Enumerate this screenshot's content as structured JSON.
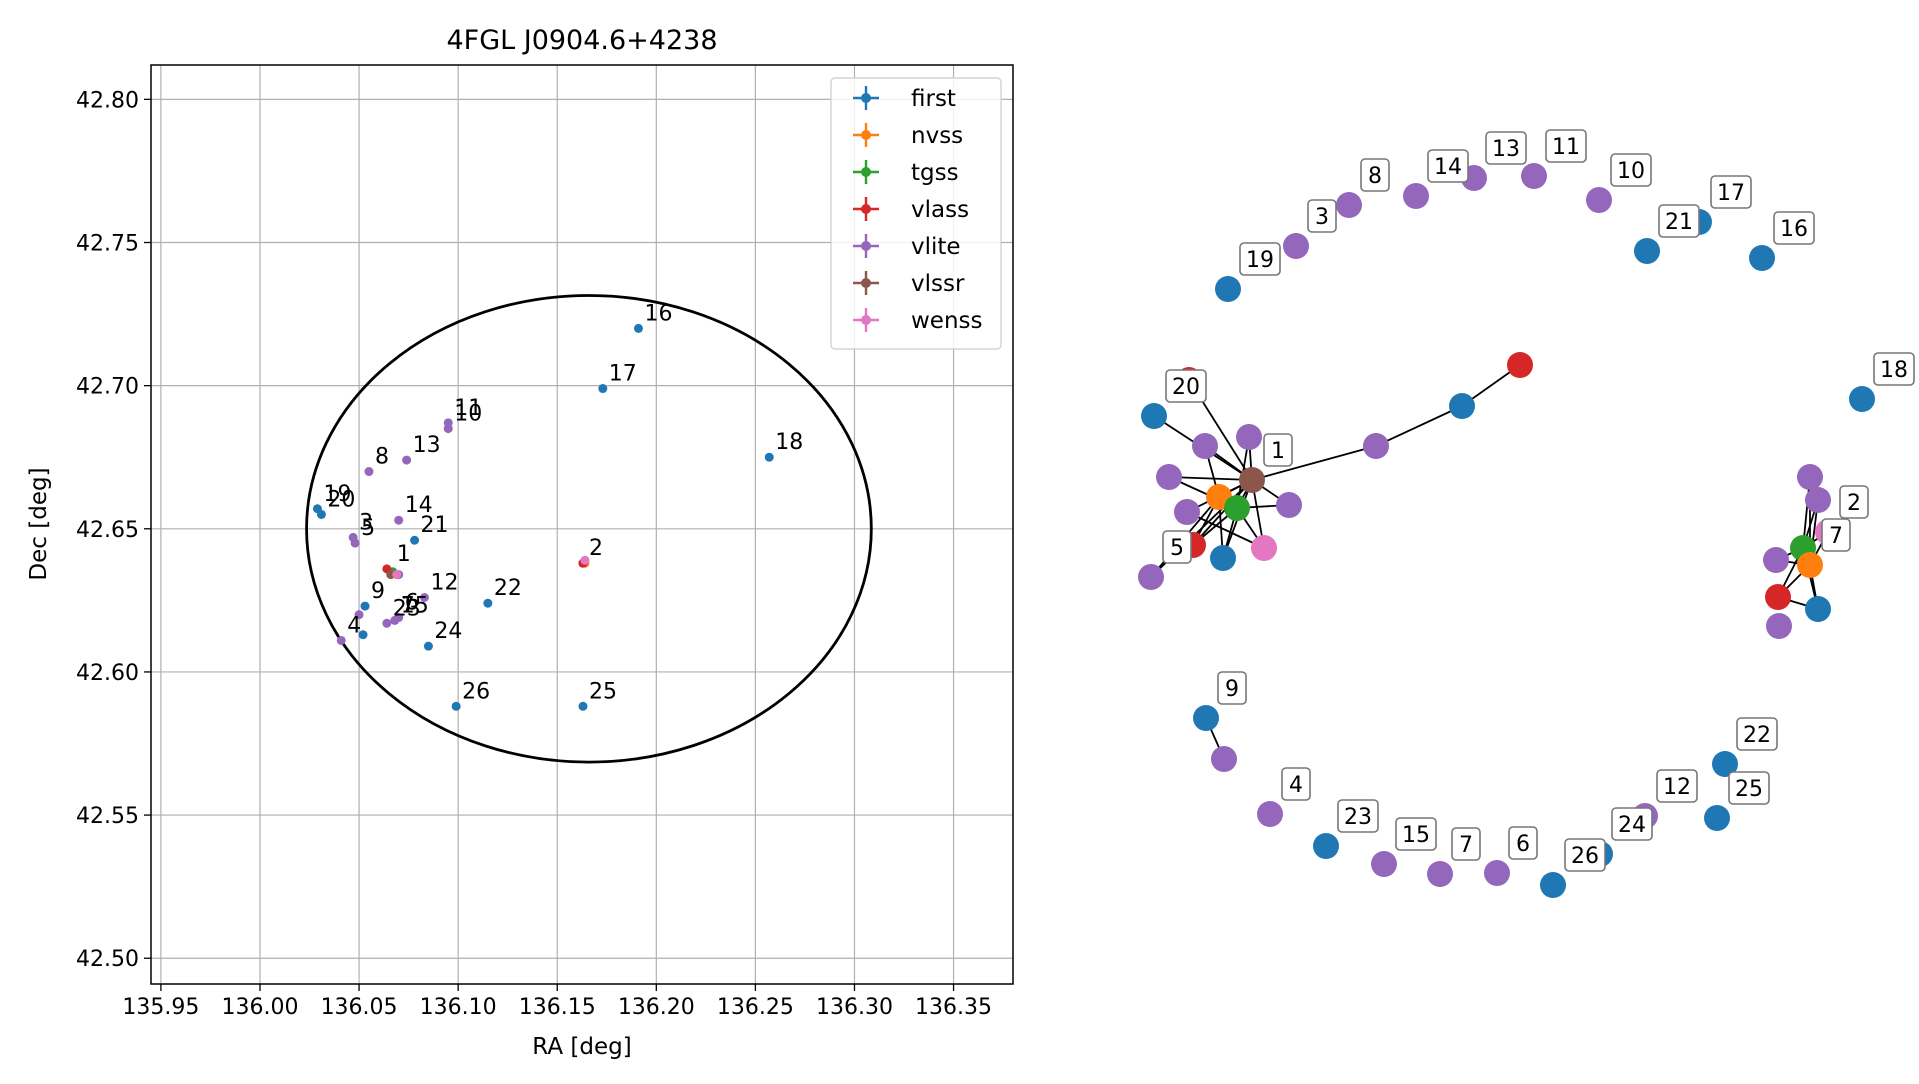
{
  "chart_data": [
    {
      "type": "scatter",
      "title": "4FGL J0904.6+4238",
      "xlabel": "RA [deg]",
      "ylabel": "Dec [deg]",
      "xlim": [
        135.945,
        136.38
      ],
      "ylim": [
        42.491,
        42.812
      ],
      "xticks": [
        "135.95",
        "136.00",
        "136.05",
        "136.10",
        "136.15",
        "136.20",
        "136.25",
        "136.30",
        "136.35"
      ],
      "xtick_values": [
        135.95,
        136.0,
        136.05,
        136.1,
        136.15,
        136.2,
        136.25,
        136.3,
        136.35
      ],
      "yticks": [
        "42.50",
        "42.55",
        "42.60",
        "42.65",
        "42.70",
        "42.75",
        "42.80"
      ],
      "ytick_values": [
        42.5,
        42.55,
        42.6,
        42.65,
        42.7,
        42.75,
        42.8
      ],
      "grid": true,
      "legend_position": "top-right",
      "ellipse": {
        "center": [
          136.166,
          42.65
        ],
        "semi_axis_ra": 0.1425,
        "semi_axis_dec": 0.0815,
        "color": "#000000"
      },
      "series": [
        {
          "name": "first",
          "color": "#1f77b4",
          "points": [
            [
              136.029,
              42.657
            ],
            [
              136.031,
              42.655
            ],
            [
              136.053,
              42.623
            ],
            [
              136.052,
              42.613
            ],
            [
              136.078,
              42.646
            ],
            [
              136.085,
              42.609
            ],
            [
              136.115,
              42.624
            ],
            [
              136.099,
              42.588
            ],
            [
              136.163,
              42.588
            ],
            [
              136.163,
              42.638
            ],
            [
              136.173,
              42.699
            ],
            [
              136.191,
              42.72
            ],
            [
              136.257,
              42.675
            ]
          ]
        },
        {
          "name": "nvss",
          "color": "#ff7f0e",
          "points": [
            [
              136.066,
              42.635
            ],
            [
              136.164,
              42.638
            ]
          ]
        },
        {
          "name": "tgss",
          "color": "#2ca02c",
          "points": [
            [
              136.067,
              42.635
            ],
            [
              136.163,
              42.638
            ]
          ]
        },
        {
          "name": "vlass",
          "color": "#d62728",
          "points": [
            [
              136.064,
              42.636
            ],
            [
              136.163,
              42.638
            ]
          ]
        },
        {
          "name": "vlite",
          "color": "#9467bd",
          "points": [
            [
              136.041,
              42.611
            ],
            [
              136.047,
              42.647
            ],
            [
              136.048,
              42.645
            ],
            [
              136.05,
              42.62
            ],
            [
              136.055,
              42.67
            ],
            [
              136.064,
              42.617
            ],
            [
              136.068,
              42.618
            ],
            [
              136.07,
              42.619
            ],
            [
              136.07,
              42.634
            ],
            [
              136.07,
              42.653
            ],
            [
              136.074,
              42.674
            ],
            [
              136.083,
              42.626
            ],
            [
              136.095,
              42.687
            ],
            [
              136.095,
              42.685
            ]
          ]
        },
        {
          "name": "vlssr",
          "color": "#8c564b",
          "points": [
            [
              136.066,
              42.634
            ]
          ]
        },
        {
          "name": "wenss",
          "color": "#e377c2",
          "points": [
            [
              136.069,
              42.634
            ],
            [
              136.164,
              42.639
            ]
          ]
        }
      ],
      "annotations": [
        {
          "text": "16",
          "x": 136.191,
          "y": 42.72
        },
        {
          "text": "17",
          "x": 136.173,
          "y": 42.699
        },
        {
          "text": "18",
          "x": 136.257,
          "y": 42.675
        },
        {
          "text": "11",
          "x": 136.095,
          "y": 42.687
        },
        {
          "text": "10",
          "x": 136.095,
          "y": 42.685
        },
        {
          "text": "8",
          "x": 136.055,
          "y": 42.67
        },
        {
          "text": "13",
          "x": 136.074,
          "y": 42.674
        },
        {
          "text": "19",
          "x": 136.029,
          "y": 42.657
        },
        {
          "text": "20",
          "x": 136.031,
          "y": 42.655
        },
        {
          "text": "14",
          "x": 136.07,
          "y": 42.653
        },
        {
          "text": "3",
          "x": 136.047,
          "y": 42.647
        },
        {
          "text": "5",
          "x": 136.048,
          "y": 42.645
        },
        {
          "text": "21",
          "x": 136.078,
          "y": 42.646
        },
        {
          "text": "1",
          "x": 136.066,
          "y": 42.636
        },
        {
          "text": "2",
          "x": 136.163,
          "y": 42.638
        },
        {
          "text": "12",
          "x": 136.083,
          "y": 42.626
        },
        {
          "text": "22",
          "x": 136.115,
          "y": 42.624
        },
        {
          "text": "9",
          "x": 136.053,
          "y": 42.623
        },
        {
          "text": "6",
          "x": 136.07,
          "y": 42.619
        },
        {
          "text": "7",
          "x": 136.068,
          "y": 42.618
        },
        {
          "text": "15",
          "x": 136.068,
          "y": 42.618
        },
        {
          "text": "23",
          "x": 136.064,
          "y": 42.617
        },
        {
          "text": "4",
          "x": 136.041,
          "y": 42.611
        },
        {
          "text": "24",
          "x": 136.085,
          "y": 42.609
        },
        {
          "text": "26",
          "x": 136.099,
          "y": 42.588
        },
        {
          "text": "25",
          "x": 136.163,
          "y": 42.588
        }
      ]
    },
    {
      "type": "network",
      "nodes": [
        {
          "label": "",
          "color": "#d62728"
        },
        {
          "label": "20",
          "color": "#1f77b4"
        },
        {
          "label": "",
          "color": "#9467bd"
        },
        {
          "label": "",
          "color": "#9467bd"
        },
        {
          "label": "",
          "color": "#9467bd"
        },
        {
          "label": "1",
          "color": "#8c564b"
        },
        {
          "label": "",
          "color": "#9467bd"
        },
        {
          "label": "",
          "color": "#ff7f0e"
        },
        {
          "label": "",
          "color": "#2ca02c"
        },
        {
          "label": "",
          "color": "#9467bd"
        },
        {
          "label": "",
          "color": "#d62728"
        },
        {
          "label": "",
          "color": "#1f77b4"
        },
        {
          "label": "",
          "color": "#e377c2"
        },
        {
          "label": "5",
          "color": "#9467bd"
        },
        {
          "label": "",
          "color": "#9467bd"
        },
        {
          "label": "",
          "color": "#1f77b4"
        },
        {
          "label": "",
          "color": "#d62728"
        },
        {
          "label": "",
          "color": "#9467bd"
        },
        {
          "label": "",
          "color": "#9467bd"
        },
        {
          "label": "2",
          "color": "#e377c2"
        },
        {
          "label": "",
          "color": "#2ca02c"
        },
        {
          "label": "7",
          "color": "#ff7f0e"
        },
        {
          "label": "",
          "color": "#9467bd"
        },
        {
          "label": "",
          "color": "#d62728"
        },
        {
          "label": "",
          "color": "#1f77b4"
        },
        {
          "label": "",
          "color": "#9467bd"
        },
        {
          "label": "19",
          "color": "#1f77b4"
        },
        {
          "label": "3",
          "color": "#9467bd"
        },
        {
          "label": "8",
          "color": "#9467bd"
        },
        {
          "label": "14",
          "color": "#9467bd"
        },
        {
          "label": "13",
          "color": "#9467bd"
        },
        {
          "label": "11",
          "color": "#9467bd"
        },
        {
          "label": "10",
          "color": "#9467bd"
        },
        {
          "label": "21",
          "color": "#1f77b4"
        },
        {
          "label": "17",
          "color": "#1f77b4"
        },
        {
          "label": "16",
          "color": "#1f77b4"
        },
        {
          "label": "18",
          "color": "#1f77b4"
        },
        {
          "label": "9",
          "color": "#1f77b4"
        },
        {
          "label": "",
          "color": "#9467bd"
        },
        {
          "label": "4",
          "color": "#9467bd"
        },
        {
          "label": "23",
          "color": "#1f77b4"
        },
        {
          "label": "15",
          "color": "#9467bd"
        },
        {
          "label": "7",
          "color": "#9467bd"
        },
        {
          "label": "6",
          "color": "#9467bd"
        },
        {
          "label": "26",
          "color": "#1f77b4"
        },
        {
          "label": "24",
          "color": "#1f77b4"
        },
        {
          "label": "12",
          "color": "#9467bd"
        },
        {
          "label": "22",
          "color": "#1f77b4"
        },
        {
          "label": "25",
          "color": "#1f77b4"
        }
      ],
      "edges": [
        [
          5,
          0
        ],
        [
          5,
          1
        ],
        [
          5,
          2
        ],
        [
          5,
          3
        ],
        [
          5,
          4
        ],
        [
          5,
          6
        ],
        [
          5,
          7
        ],
        [
          5,
          8
        ],
        [
          5,
          9
        ],
        [
          5,
          10
        ],
        [
          5,
          11
        ],
        [
          5,
          12
        ],
        [
          5,
          13
        ],
        [
          5,
          14
        ],
        [
          7,
          8
        ],
        [
          7,
          10
        ],
        [
          7,
          11
        ],
        [
          7,
          13
        ],
        [
          8,
          10
        ],
        [
          8,
          11
        ],
        [
          8,
          12
        ],
        [
          2,
          7
        ],
        [
          4,
          8
        ],
        [
          6,
          8
        ],
        [
          9,
          12
        ],
        [
          3,
          8
        ],
        [
          14,
          15
        ],
        [
          15,
          16
        ],
        [
          20,
          17
        ],
        [
          20,
          18
        ],
        [
          20,
          19
        ],
        [
          20,
          21
        ],
        [
          20,
          22
        ],
        [
          20,
          23
        ],
        [
          20,
          24
        ],
        [
          21,
          23
        ],
        [
          21,
          24
        ],
        [
          21,
          22
        ],
        [
          17,
          21
        ],
        [
          18,
          21
        ],
        [
          19,
          21
        ],
        [
          23,
          24
        ],
        [
          37,
          38
        ]
      ]
    }
  ]
}
